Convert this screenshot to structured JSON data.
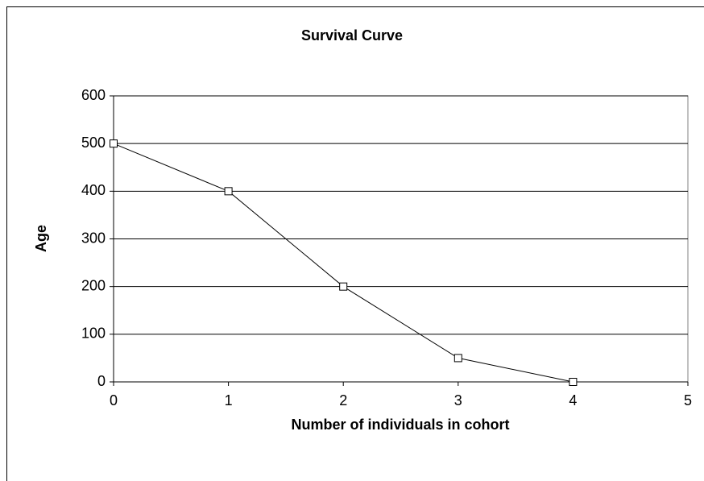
{
  "chart_data": {
    "type": "line",
    "title": "Survival Curve",
    "x_label": "Number of individuals in cohort",
    "y_label": "Age",
    "x": [
      0,
      1,
      2,
      3,
      4
    ],
    "values": [
      500,
      400,
      200,
      50,
      0
    ],
    "color": "#000000",
    "xlim": [
      0,
      5
    ],
    "xticks": [
      0,
      1,
      2,
      3,
      4,
      5
    ],
    "ylim": [
      0,
      600
    ],
    "yticks": [
      0,
      100,
      200,
      300,
      400,
      500,
      600
    ],
    "grid": true
  }
}
